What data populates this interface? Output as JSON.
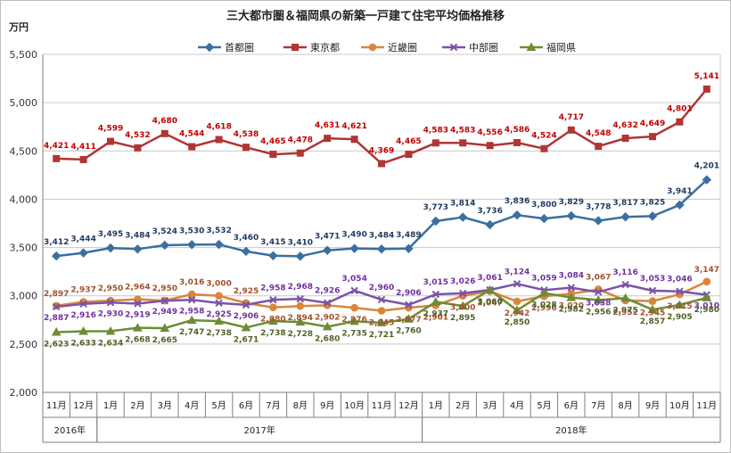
{
  "chart_data": {
    "type": "line",
    "title": "三大都市圏＆福岡県の新築一戸建て住宅平均価格推移",
    "ylabel": "万円",
    "ylim": [
      2000,
      5500
    ],
    "yticks": [
      "2,000",
      "2,500",
      "3,000",
      "3,500",
      "4,000",
      "4,500",
      "5,000",
      "5,500"
    ],
    "grid": true,
    "legend_position": "top",
    "categories": [
      "11月",
      "12月",
      "1月",
      "2月",
      "3月",
      "4月",
      "5月",
      "6月",
      "7月",
      "8月",
      "9月",
      "10月",
      "11月",
      "12月",
      "1月",
      "2月",
      "3月",
      "4月",
      "5月",
      "6月",
      "7月",
      "8月",
      "9月",
      "10月",
      "11月"
    ],
    "year_groups": [
      {
        "label": "2016年",
        "start": 0,
        "end": 1
      },
      {
        "label": "2017年",
        "start": 2,
        "end": 13
      },
      {
        "label": "2018年",
        "start": 14,
        "end": 24
      }
    ],
    "series": [
      {
        "name": "首都圏",
        "color": "#3b6fa0",
        "marker": "diamond",
        "values": [
          3412,
          3444,
          3495,
          3484,
          3524,
          3530,
          3532,
          3460,
          3415,
          3410,
          3471,
          3490,
          3484,
          3489,
          3773,
          3814,
          3736,
          3836,
          3800,
          3829,
          3778,
          3817,
          3825,
          3941,
          4201
        ],
        "labels": [
          "3,412",
          "3,444",
          "3,495",
          "3,484",
          "3,524",
          "3,530",
          "3,532",
          "3,460",
          "3,415",
          "3,410",
          "3,471",
          "3,490",
          "3,484",
          "3,489",
          "3,773",
          "3,814",
          "3,736",
          "3,836",
          "3,800",
          "3,829",
          "3,778",
          "3,817",
          "3,825",
          "3,941",
          "4,201"
        ]
      },
      {
        "name": "東京都",
        "color": "#b03535",
        "marker": "square",
        "values": [
          4421,
          4411,
          4599,
          4532,
          4680,
          4544,
          4618,
          4538,
          4465,
          4478,
          4631,
          4621,
          4369,
          4465,
          4583,
          4583,
          4556,
          4586,
          4524,
          4717,
          4548,
          4632,
          4649,
          4801,
          5141
        ],
        "labels": [
          "4,421",
          "4,411",
          "4,599",
          "4,532",
          "4,680",
          "4,544",
          "4,618",
          "4,538",
          "4,465",
          "4,478",
          "4,631",
          "4,621",
          "4,369",
          "4,465",
          "4,583",
          "4,583",
          "4,556",
          "4,586",
          "4,524",
          "4,717",
          "4,548",
          "4,632",
          "4,649",
          "4,801",
          "5,141"
        ]
      },
      {
        "name": "近畿圏",
        "color": "#d9853b",
        "marker": "circle",
        "values": [
          2897,
          2937,
          2950,
          2964,
          2950,
          3016,
          3000,
          2925,
          2880,
          2894,
          2902,
          2876,
          2845,
          2877,
          2901,
          3000,
          3047,
          2942,
          2996,
          3020,
          3067,
          2952,
          2945,
          3015,
          3147
        ],
        "labels": [
          "2,897",
          "2,937",
          "2,950",
          "2,964",
          "2,950",
          "3,016",
          "3,000",
          "2,925",
          "2,880",
          "2,894",
          "2,902",
          "2,876",
          "2,845",
          "2,877",
          "2,901",
          "3,000",
          "3,047",
          "2,942",
          "2,996",
          "3,020",
          "3,067",
          "2,952",
          "2,945",
          "3,015",
          "3,147"
        ]
      },
      {
        "name": "中部圏",
        "color": "#7b53a6",
        "marker": "x",
        "values": [
          2887,
          2916,
          2930,
          2919,
          2949,
          2958,
          2925,
          2906,
          2958,
          2968,
          2926,
          3054,
          2960,
          2906,
          3015,
          3026,
          3061,
          3124,
          3059,
          3084,
          3038,
          3116,
          3053,
          3046,
          3010
        ],
        "labels": [
          "2,887",
          "2,916",
          "2,930",
          "2,919",
          "2,949",
          "2,958",
          "2,925",
          "2,906",
          "2,958",
          "2,968",
          "2,926",
          "3,054",
          "2,960",
          "2,906",
          "3,015",
          "3,026",
          "3,061",
          "3,124",
          "3,059",
          "3,084",
          "3,038",
          "3,116",
          "3,053",
          "3,046",
          "3,010"
        ]
      },
      {
        "name": "福岡県",
        "color": "#6e8c35",
        "marker": "triangle",
        "values": [
          2623,
          2633,
          2634,
          2668,
          2665,
          2747,
          2738,
          2671,
          2738,
          2728,
          2680,
          2735,
          2721,
          2760,
          2937,
          2895,
          3060,
          2850,
          3028,
          2982,
          2956,
          2975,
          2857,
          2905,
          2980
        ],
        "labels": [
          "2,623",
          "2,633",
          "2,634",
          "2,668",
          "2,665",
          "2,747",
          "2,738",
          "2,671",
          "2,738",
          "2,728",
          "2,680",
          "2,735",
          "2,721",
          "2,760",
          "2,937",
          "2,895",
          "3,060",
          "2,850",
          "3,028",
          "2,982",
          "2,956",
          "2,975",
          "2,857",
          "2,905",
          "2,980"
        ]
      }
    ]
  }
}
